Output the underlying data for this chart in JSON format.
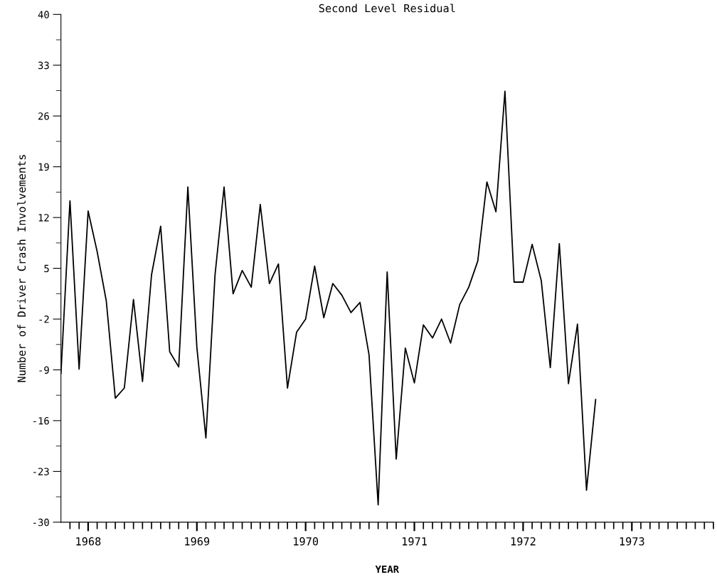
{
  "chart_data": {
    "type": "line",
    "title": "Second Level Residual",
    "xlabel": "YEAR",
    "ylabel": "Number of Driver Crash Involvements",
    "x": [
      1967.75,
      1967.833,
      1967.917,
      1968.0,
      1968.083,
      1968.167,
      1968.25,
      1968.333,
      1968.417,
      1968.5,
      1968.583,
      1968.667,
      1968.75,
      1968.833,
      1968.917,
      1969.0,
      1969.083,
      1969.167,
      1969.25,
      1969.333,
      1969.417,
      1969.5,
      1969.583,
      1969.667,
      1969.75,
      1969.833,
      1969.917,
      1970.0,
      1970.083,
      1970.167,
      1970.25,
      1970.333,
      1970.417,
      1970.5,
      1970.583,
      1970.667,
      1970.75,
      1970.833,
      1970.917,
      1971.0,
      1971.083,
      1971.167,
      1971.25,
      1971.333,
      1971.417,
      1971.5,
      1971.583,
      1971.667,
      1971.75,
      1971.833,
      1971.917,
      1972.0,
      1972.083,
      1972.167,
      1972.25,
      1972.333,
      1972.417,
      1972.5,
      1972.583,
      1972.667
    ],
    "series": [
      {
        "color": "#000000",
        "values": [
          -9.5,
          14.3,
          -8.9,
          12.9,
          7.3,
          0.5,
          -12.9,
          -11.5,
          0.7,
          -10.6,
          4.1,
          10.8,
          -6.5,
          -8.6,
          16.2,
          -5.9,
          -18.4,
          4.1,
          16.2,
          1.5,
          4.7,
          2.4,
          13.8,
          2.9,
          5.6,
          -11.5,
          -3.8,
          -2.0,
          5.3,
          -1.8,
          2.9,
          1.3,
          -1.1,
          0.3,
          -6.9,
          -27.6,
          4.5,
          -21.3,
          -6.0,
          -10.8,
          -2.8,
          -4.6,
          -2.0,
          -5.3,
          0.0,
          2.4,
          6.0,
          16.9,
          12.8,
          29.4,
          3.1,
          3.1,
          8.3,
          3.3,
          -8.7,
          8.4,
          -10.9,
          -2.7,
          -25.6,
          -13.1
        ]
      }
    ],
    "xlim": [
      1967.75,
      1973.75
    ],
    "xticks": [
      1968,
      1969,
      1970,
      1971,
      1972,
      1973,
      {
        "value": 1967.833,
        "label": null
      },
      {
        "value": 1967.917,
        "label": null
      },
      {
        "value": 1968.083,
        "label": null
      },
      {
        "value": 1968.167,
        "label": null
      },
      {
        "value": 1968.25,
        "label": null
      },
      {
        "value": 1968.333,
        "label": null
      },
      {
        "value": 1968.417,
        "label": null
      },
      {
        "value": 1968.5,
        "label": null
      },
      {
        "value": 1968.583,
        "label": null
      },
      {
        "value": 1968.667,
        "label": null
      },
      {
        "value": 1968.75,
        "label": null
      },
      {
        "value": 1968.833,
        "label": null
      },
      {
        "value": 1968.917,
        "label": null
      },
      {
        "value": 1969.083,
        "label": null
      },
      {
        "value": 1969.167,
        "label": null
      },
      {
        "value": 1969.25,
        "label": null
      },
      {
        "value": 1969.333,
        "label": null
      },
      {
        "value": 1969.417,
        "label": null
      },
      {
        "value": 1969.5,
        "label": null
      },
      {
        "value": 1969.583,
        "label": null
      },
      {
        "value": 1969.667,
        "label": null
      },
      {
        "value": 1969.75,
        "label": null
      },
      {
        "value": 1969.833,
        "label": null
      },
      {
        "value": 1969.917,
        "label": null
      },
      {
        "value": 1970.083,
        "label": null
      },
      {
        "value": 1970.167,
        "label": null
      },
      {
        "value": 1970.25,
        "label": null
      },
      {
        "value": 1970.333,
        "label": null
      },
      {
        "value": 1970.417,
        "label": null
      },
      {
        "value": 1970.5,
        "label": null
      },
      {
        "value": 1970.583,
        "label": null
      },
      {
        "value": 1970.667,
        "label": null
      },
      {
        "value": 1970.75,
        "label": null
      },
      {
        "value": 1970.833,
        "label": null
      },
      {
        "value": 1970.917,
        "label": null
      },
      {
        "value": 1971.083,
        "label": null
      },
      {
        "value": 1971.167,
        "label": null
      },
      {
        "value": 1971.25,
        "label": null
      },
      {
        "value": 1971.333,
        "label": null
      },
      {
        "value": 1971.417,
        "label": null
      },
      {
        "value": 1971.5,
        "label": null
      },
      {
        "value": 1971.583,
        "label": null
      },
      {
        "value": 1971.667,
        "label": null
      },
      {
        "value": 1971.75,
        "label": null
      },
      {
        "value": 1971.833,
        "label": null
      },
      {
        "value": 1971.917,
        "label": null
      },
      {
        "value": 1972.083,
        "label": null
      },
      {
        "value": 1972.167,
        "label": null
      },
      {
        "value": 1972.25,
        "label": null
      },
      {
        "value": 1972.333,
        "label": null
      },
      {
        "value": 1972.417,
        "label": null
      },
      {
        "value": 1972.5,
        "label": null
      },
      {
        "value": 1972.583,
        "label": null
      },
      {
        "value": 1972.667,
        "label": null
      },
      {
        "value": 1972.75,
        "label": null
      },
      {
        "value": 1972.833,
        "label": null
      },
      {
        "value": 1972.917,
        "label": null
      },
      {
        "value": 1973.083,
        "label": null
      },
      {
        "value": 1973.167,
        "label": null
      },
      {
        "value": 1973.25,
        "label": null
      },
      {
        "value": 1973.333,
        "label": null
      },
      {
        "value": 1973.417,
        "label": null
      },
      {
        "value": 1973.5,
        "label": null
      },
      {
        "value": 1973.583,
        "label": null
      },
      {
        "value": 1973.667,
        "label": null
      },
      {
        "value": 1973.75,
        "label": null
      }
    ],
    "ylim": [
      -30,
      40
    ],
    "yticks": [
      -30,
      -23,
      -16,
      -9,
      -2,
      5,
      12,
      19,
      26,
      33,
      40,
      {
        "value": -26.5,
        "label": null
      },
      {
        "value": -19.5,
        "label": null
      },
      {
        "value": -12.5,
        "label": null
      },
      {
        "value": -5.5,
        "label": null
      },
      {
        "value": 1.5,
        "label": null
      },
      {
        "value": 8.5,
        "label": null
      },
      {
        "value": 15.5,
        "label": null
      },
      {
        "value": 22.5,
        "label": null
      },
      {
        "value": 29.5,
        "label": null
      },
      {
        "value": 36.5,
        "label": null
      }
    ],
    "grid": false,
    "legend": false,
    "marker": "none",
    "line_style": "solid"
  }
}
